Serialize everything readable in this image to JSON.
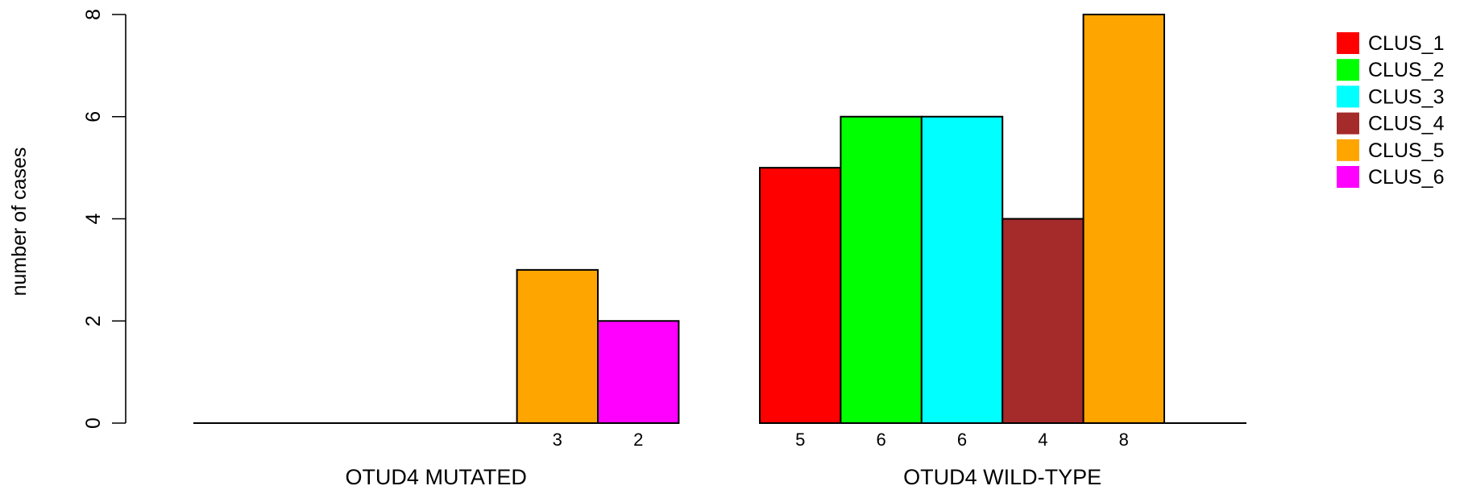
{
  "chart_data": {
    "type": "bar",
    "ylabel": "number of cases",
    "ylim": [
      0,
      8
    ],
    "yticks": [
      "0",
      "2",
      "4",
      "6",
      "8"
    ],
    "groups": [
      {
        "label": "OTUD4 MUTATED",
        "bars": [
          {
            "series": "CLUS_1",
            "value": 0,
            "label": ""
          },
          {
            "series": "CLUS_2",
            "value": 0,
            "label": ""
          },
          {
            "series": "CLUS_3",
            "value": 0,
            "label": ""
          },
          {
            "series": "CLUS_4",
            "value": 0,
            "label": ""
          },
          {
            "series": "CLUS_5",
            "value": 3,
            "label": "3"
          },
          {
            "series": "CLUS_6",
            "value": 2,
            "label": "2"
          }
        ]
      },
      {
        "label": "OTUD4 WILD-TYPE",
        "bars": [
          {
            "series": "CLUS_1",
            "value": 5,
            "label": "5"
          },
          {
            "series": "CLUS_2",
            "value": 6,
            "label": "6"
          },
          {
            "series": "CLUS_3",
            "value": 6,
            "label": "6"
          },
          {
            "series": "CLUS_4",
            "value": 4,
            "label": "4"
          },
          {
            "series": "CLUS_5",
            "value": 8,
            "label": "8"
          },
          {
            "series": "CLUS_6",
            "value": 0,
            "label": ""
          }
        ]
      }
    ],
    "legend": {
      "position": "top-right",
      "items": [
        {
          "name": "CLUS_1",
          "color": "#ff0000"
        },
        {
          "name": "CLUS_2",
          "color": "#00ff00"
        },
        {
          "name": "CLUS_3",
          "color": "#00ffff"
        },
        {
          "name": "CLUS_4",
          "color": "#a52a2a"
        },
        {
          "name": "CLUS_5",
          "color": "#ffa500"
        },
        {
          "name": "CLUS_6",
          "color": "#ff00ff"
        }
      ]
    },
    "grid": false
  }
}
